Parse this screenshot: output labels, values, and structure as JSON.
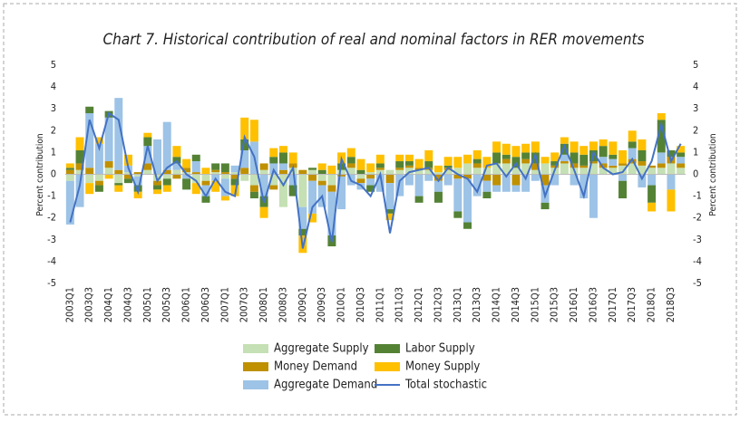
{
  "chart_data": {
    "type": "bar",
    "stacked": true,
    "title": "Chart 7. Historical contribution of real and nominal factors in RER movements",
    "ylabel": "Percent contribution",
    "y2label": "Percent contribution",
    "ylim": [
      -5,
      5
    ],
    "yticks": [
      -5,
      -4,
      -3,
      -2,
      -1,
      0,
      1,
      2,
      3,
      4,
      5
    ],
    "y2lim": [
      -5,
      5
    ],
    "y2ticks": [
      -5,
      -4,
      -3,
      -2,
      -1,
      0,
      1,
      2,
      3,
      4,
      5
    ],
    "categories": [
      "2003Q1",
      null,
      "2003Q3",
      null,
      "2004Q1",
      null,
      "2004Q3",
      null,
      "2005Q1",
      null,
      "2005Q3",
      null,
      "2006Q1",
      null,
      "2006Q3",
      null,
      "2007Q1",
      null,
      "2007Q3",
      null,
      "2008Q1",
      null,
      "2008Q3",
      null,
      "2009Q1",
      null,
      "2009Q3",
      null,
      "2010Q1",
      null,
      "2010Q3",
      null,
      "2011Q1",
      null,
      "2011Q3",
      null,
      "2012Q1",
      null,
      "2012Q3",
      null,
      "2013Q1",
      null,
      "2013Q3",
      null,
      "2014Q1",
      null,
      "2014Q3",
      null,
      "2015Q1",
      null,
      "2015Q3",
      null,
      "2016Q1",
      null,
      "2016Q3",
      null,
      "2017Q1",
      null,
      "2017Q3",
      null,
      "2018Q1",
      null,
      "2018Q3",
      null
    ],
    "series": [
      {
        "name": "Aggregate Supply",
        "color": "#c5e0b4",
        "values": [
          -0.3,
          0.2,
          -0.4,
          -0.3,
          0.3,
          -0.4,
          0.1,
          -0.1,
          0.2,
          -0.3,
          -0.2,
          0.2,
          0.1,
          -0.4,
          -0.3,
          0.1,
          -0.2,
          0.1,
          -0.3,
          -0.5,
          0.2,
          -0.5,
          -1.5,
          0.3,
          -1.5,
          0.2,
          -0.3,
          -0.5,
          0.2,
          0.3,
          -0.2,
          0.1,
          0.2,
          0.2,
          0.2,
          0.3,
          0.2,
          0.2,
          0.1,
          0.2,
          0.3,
          0.5,
          0.3,
          0.3,
          0.5,
          0.5,
          0.3,
          0.5,
          0.2,
          0.5,
          0.3,
          0.5,
          0.3,
          0.3,
          0.5,
          0.3,
          0.3,
          0.4,
          0.5,
          0.4,
          0.3,
          0.3,
          0.5,
          0.3
        ]
      },
      {
        "name": "Money Demand",
        "color": "#bf9000",
        "values": [
          0.2,
          0.3,
          0.3,
          -0.2,
          0.3,
          0.2,
          -0.2,
          0.1,
          0.3,
          -0.2,
          0.2,
          -0.2,
          0.2,
          0.1,
          -0.2,
          0.1,
          0.1,
          -0.2,
          0.3,
          -0.3,
          0.3,
          -0.2,
          0.2,
          0.2,
          0.2,
          -0.3,
          -0.2,
          -0.3,
          -0.1,
          0.2,
          -0.2,
          -0.2,
          0.1,
          -0.4,
          0.1,
          0.1,
          0.1,
          0.1,
          -0.3,
          0.1,
          -0.2,
          -0.2,
          0.2,
          -0.3,
          -0.5,
          0.2,
          -0.5,
          0.2,
          0.3,
          -0.5,
          0.1,
          0.1,
          0.2,
          0.1,
          0.1,
          0.2,
          0.1,
          0.1,
          0.2,
          0.2,
          0.1,
          0.2,
          0.3,
          0.2
        ]
      },
      {
        "name": "Aggregate Demand",
        "color": "#9dc3e6",
        "values": [
          -2.0,
          -1.5,
          2.5,
          1.4,
          2.0,
          3.3,
          0.3,
          -0.4,
          0.8,
          1.6,
          2.2,
          0.3,
          -0.2,
          0.5,
          -0.5,
          -0.3,
          -0.8,
          0.3,
          0.8,
          1.5,
          -1.0,
          0.5,
          0.3,
          -0.5,
          -1.0,
          -1.5,
          -1.0,
          -2.0,
          -1.5,
          -0.5,
          -0.3,
          -0.3,
          -0.8,
          -1.2,
          -1.0,
          -0.5,
          -1.0,
          -0.3,
          -0.5,
          -0.5,
          -1.5,
          -2.0,
          -1.0,
          -0.5,
          -0.3,
          -0.8,
          -0.3,
          -0.8,
          -0.3,
          -0.8,
          -0.5,
          0.3,
          -0.5,
          -1.1,
          -2.0,
          0.3,
          0.3,
          -0.3,
          0.5,
          -0.6,
          -0.5,
          0.5,
          -0.7,
          0.3
        ]
      },
      {
        "name": "Labor Supply",
        "color": "#548235",
        "values": [
          0.1,
          0.6,
          0.3,
          -0.3,
          0.3,
          -0.1,
          -0.2,
          -0.3,
          0.4,
          -0.2,
          -0.3,
          0.3,
          -0.5,
          0.3,
          -0.3,
          0.3,
          0.4,
          -0.3,
          0.5,
          -0.3,
          -0.5,
          0.3,
          0.5,
          -0.5,
          -0.3,
          0.1,
          0.2,
          -0.5,
          0.3,
          0.3,
          0.2,
          -0.3,
          0.2,
          -0.2,
          0.3,
          0.2,
          -0.3,
          0.3,
          -0.5,
          0.1,
          -0.3,
          -0.3,
          0.2,
          -0.3,
          0.5,
          0.2,
          0.5,
          0.3,
          0.5,
          -0.3,
          0.2,
          0.5,
          0.5,
          0.5,
          0.5,
          0.5,
          0.2,
          -0.8,
          0.3,
          0.5,
          -0.8,
          1.5,
          0.3,
          0.2
        ]
      },
      {
        "name": "Money Supply",
        "color": "#ffc000",
        "values": [
          0.2,
          0.6,
          -0.5,
          0.3,
          -0.2,
          -0.3,
          0.5,
          -0.3,
          0.2,
          -0.2,
          -0.3,
          0.5,
          0.4,
          -0.5,
          0.3,
          -0.5,
          -0.2,
          -0.5,
          1.0,
          1.0,
          -0.5,
          0.4,
          0.3,
          0.5,
          -0.8,
          -0.4,
          0.3,
          0.4,
          0.5,
          0.4,
          0.5,
          0.4,
          0.4,
          -0.3,
          0.3,
          0.3,
          0.4,
          0.5,
          0.3,
          0.4,
          0.5,
          0.4,
          0.4,
          0.5,
          0.5,
          0.5,
          0.5,
          0.4,
          0.5,
          0.3,
          0.4,
          0.3,
          0.5,
          0.4,
          0.4,
          0.3,
          0.6,
          0.6,
          0.5,
          0.5,
          -0.4,
          0.3,
          -1.0,
          0.3
        ]
      }
    ],
    "line": {
      "name": "Total stochastic",
      "color": "#4472c4",
      "values": [
        -2.2,
        -0.5,
        2.5,
        1.2,
        2.8,
        2.5,
        0.3,
        -0.8,
        1.3,
        -0.3,
        0.3,
        0.6,
        0,
        -0.3,
        -1,
        -0.2,
        -0.8,
        -1,
        1.7,
        0.8,
        -1.3,
        0.2,
        -0.5,
        0.3,
        -3.4,
        -1.5,
        -1,
        -3.1,
        0.7,
        -0.3,
        -0.5,
        -1,
        0,
        -2.7,
        -0.3,
        0.1,
        0.2,
        0.3,
        -0.3,
        0.3,
        0,
        -0.2,
        -0.8,
        0.4,
        0.5,
        -0.1,
        0.5,
        -0.2,
        0.9,
        -1,
        0.2,
        1.3,
        0.2,
        -1,
        1,
        0.3,
        0,
        0.1,
        0.7,
        -0.2,
        0.6,
        2.3,
        0.6,
        1.4
      ]
    }
  }
}
